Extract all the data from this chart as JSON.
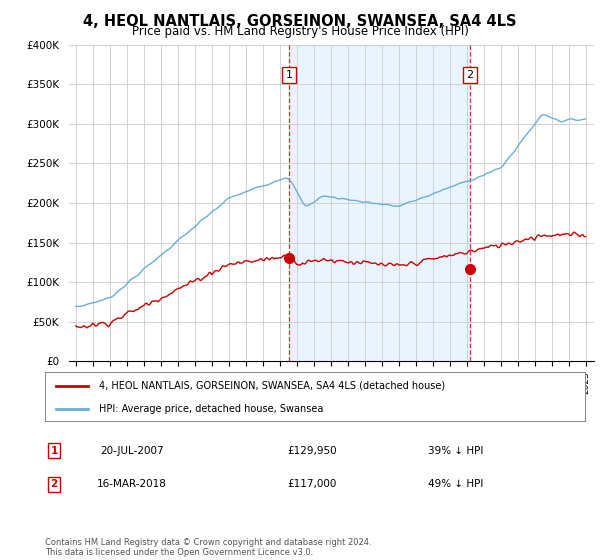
{
  "title": "4, HEOL NANTLAIS, GORSEINON, SWANSEA, SA4 4LS",
  "subtitle": "Price paid vs. HM Land Registry's House Price Index (HPI)",
  "title_fontsize": 10.5,
  "subtitle_fontsize": 8.5,
  "ylim": [
    0,
    400000
  ],
  "yticks": [
    0,
    50000,
    100000,
    150000,
    200000,
    250000,
    300000,
    350000,
    400000
  ],
  "ytick_labels": [
    "£0",
    "£50K",
    "£100K",
    "£150K",
    "£200K",
    "£250K",
    "£300K",
    "£350K",
    "£400K"
  ],
  "sale1_x": 2007.55,
  "sale1_price": 129950,
  "sale2_x": 2018.21,
  "sale2_price": 117000,
  "hpi_color": "#6baed6",
  "sale_color": "#cc0000",
  "shade_color": "#ddeeff",
  "legend1_text": "4, HEOL NANTLAIS, GORSEINON, SWANSEA, SA4 4LS (detached house)",
  "legend2_text": "HPI: Average price, detached house, Swansea",
  "table_rows": [
    {
      "num": "1",
      "date": "20-JUL-2007",
      "price": "£129,950",
      "pct": "39% ↓ HPI"
    },
    {
      "num": "2",
      "date": "16-MAR-2018",
      "price": "£117,000",
      "pct": "49% ↓ HPI"
    }
  ],
  "footnote": "Contains HM Land Registry data © Crown copyright and database right 2024.\nThis data is licensed under the Open Government Licence v3.0.",
  "background_color": "#ffffff"
}
